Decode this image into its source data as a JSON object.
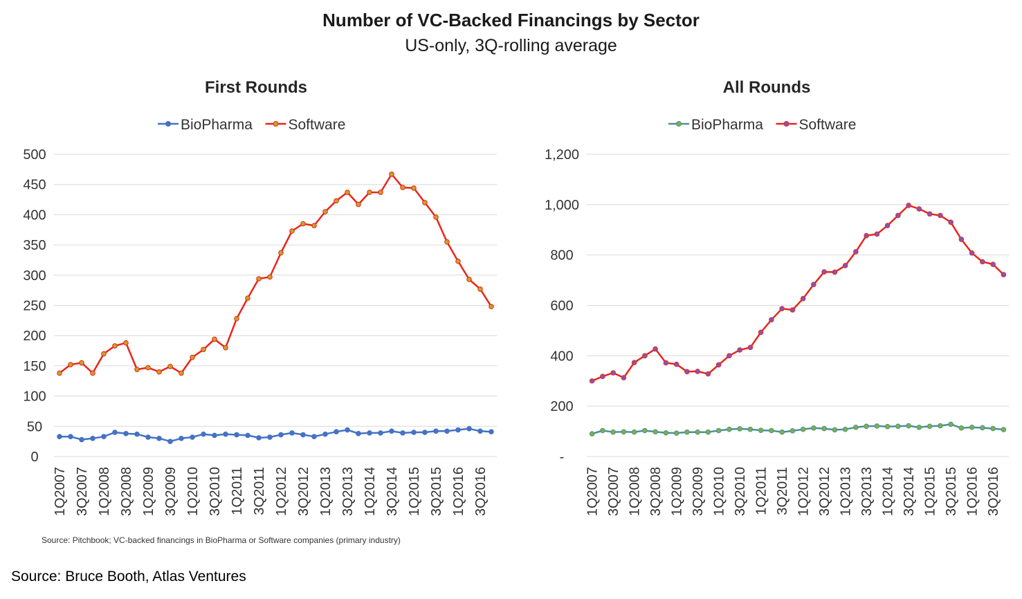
{
  "header": {
    "title": "Number of VC-Backed Financings by Sector",
    "subtitle": "US-only, 3Q-rolling average"
  },
  "footer": {
    "source_note": "Source: Pitchbook; VC-backed financings in BioPharma or Software companies (primary industry)",
    "credit": "Source: Bruce Booth, Atlas Ventures"
  },
  "chart_data": [
    {
      "type": "line",
      "title": "First Rounds",
      "legend_position": "top",
      "grid": true,
      "ylim": [
        0,
        500
      ],
      "yticks": [
        0,
        50,
        100,
        150,
        200,
        250,
        300,
        350,
        400,
        450,
        500
      ],
      "ytick_labels": [
        "0",
        "50",
        "100",
        "150",
        "200",
        "250",
        "300",
        "350",
        "400",
        "450",
        "500"
      ],
      "categories": [
        "1Q2007",
        "2Q2007",
        "3Q2007",
        "4Q2007",
        "1Q2008",
        "2Q2008",
        "3Q2008",
        "4Q2008",
        "1Q2009",
        "2Q2009",
        "3Q2009",
        "4Q2009",
        "1Q2010",
        "2Q2010",
        "3Q2010",
        "4Q2010",
        "1Q2011",
        "2Q2011",
        "3Q2011",
        "4Q2011",
        "1Q2012",
        "2Q2012",
        "3Q2012",
        "4Q2012",
        "1Q2013",
        "2Q2013",
        "3Q2013",
        "4Q2013",
        "1Q2014",
        "2Q2014",
        "3Q2014",
        "4Q2014",
        "1Q2015",
        "2Q2015",
        "3Q2015",
        "4Q2015",
        "1Q2016",
        "2Q2016",
        "3Q2016",
        "4Q2016"
      ],
      "tick_labels": [
        "1Q2007",
        "3Q2007",
        "1Q2008",
        "3Q2008",
        "1Q2009",
        "3Q2009",
        "1Q2010",
        "3Q2010",
        "1Q2011",
        "3Q2011",
        "1Q2012",
        "3Q2012",
        "1Q2013",
        "3Q2013",
        "1Q2014",
        "3Q2014",
        "1Q2015",
        "3Q2015",
        "1Q2016",
        "3Q2016"
      ],
      "series": [
        {
          "name": "BioPharma",
          "color": "#4472c4",
          "marker_color": "#4472c4",
          "values": [
            33,
            33,
            28,
            30,
            33,
            40,
            38,
            37,
            32,
            30,
            25,
            30,
            32,
            37,
            35,
            37,
            36,
            35,
            31,
            32,
            36,
            39,
            36,
            33,
            37,
            41,
            44,
            38,
            39,
            39,
            42,
            39,
            40,
            40,
            42,
            42,
            44,
            46,
            42,
            41
          ]
        },
        {
          "name": "Software",
          "color": "#e8251a",
          "marker_color": "#c9a227",
          "values": [
            138,
            152,
            155,
            138,
            170,
            183,
            188,
            144,
            147,
            140,
            149,
            138,
            164,
            177,
            194,
            180,
            228,
            262,
            294,
            297,
            337,
            373,
            385,
            382,
            405,
            423,
            437,
            417,
            437,
            437,
            467,
            445,
            444,
            420,
            396,
            355,
            323,
            293,
            277,
            248
          ]
        }
      ]
    },
    {
      "type": "line",
      "title": "All Rounds",
      "legend_position": "top",
      "grid": true,
      "ylim": [
        0,
        1200
      ],
      "yticks": [
        0,
        200,
        400,
        600,
        800,
        1000,
        1200
      ],
      "ytick_labels": [
        "-",
        "200",
        "400",
        "600",
        "800",
        "1,000",
        "1,200"
      ],
      "categories": [
        "1Q2007",
        "2Q2007",
        "3Q2007",
        "4Q2007",
        "1Q2008",
        "2Q2008",
        "3Q2008",
        "4Q2008",
        "1Q2009",
        "2Q2009",
        "3Q2009",
        "4Q2009",
        "1Q2010",
        "2Q2010",
        "3Q2010",
        "4Q2010",
        "1Q2011",
        "2Q2011",
        "3Q2011",
        "4Q2011",
        "1Q2012",
        "2Q2012",
        "3Q2012",
        "4Q2012",
        "1Q2013",
        "2Q2013",
        "3Q2013",
        "4Q2013",
        "1Q2014",
        "2Q2014",
        "3Q2014",
        "4Q2014",
        "1Q2015",
        "2Q2015",
        "3Q2015",
        "4Q2015",
        "1Q2016",
        "2Q2016",
        "3Q2016",
        "4Q2016"
      ],
      "tick_labels": [
        "1Q2007",
        "3Q2007",
        "1Q2008",
        "3Q2008",
        "1Q2009",
        "3Q2009",
        "1Q2010",
        "3Q2010",
        "1Q2011",
        "3Q2011",
        "1Q2012",
        "3Q2012",
        "1Q2013",
        "3Q2013",
        "1Q2014",
        "3Q2014",
        "1Q2015",
        "3Q2015",
        "1Q2016",
        "3Q2016"
      ],
      "series": [
        {
          "name": "BioPharma",
          "color": "#4e8d9a",
          "marker_color": "#7cb342",
          "values": [
            90,
            103,
            97,
            98,
            97,
            103,
            98,
            94,
            93,
            97,
            97,
            97,
            103,
            108,
            110,
            108,
            104,
            103,
            97,
            102,
            108,
            113,
            111,
            106,
            108,
            116,
            120,
            121,
            119,
            120,
            122,
            116,
            120,
            122,
            128,
            113,
            116,
            114,
            111,
            107
          ]
        },
        {
          "name": "Software",
          "color": "#e8251a",
          "marker_color": "#7e57c2",
          "values": [
            300,
            318,
            332,
            313,
            373,
            400,
            427,
            372,
            366,
            337,
            338,
            328,
            364,
            400,
            423,
            433,
            493,
            543,
            587,
            582,
            627,
            683,
            733,
            732,
            758,
            813,
            877,
            883,
            917,
            957,
            997,
            983,
            963,
            957,
            930,
            862,
            808,
            773,
            763,
            722
          ]
        }
      ]
    }
  ]
}
